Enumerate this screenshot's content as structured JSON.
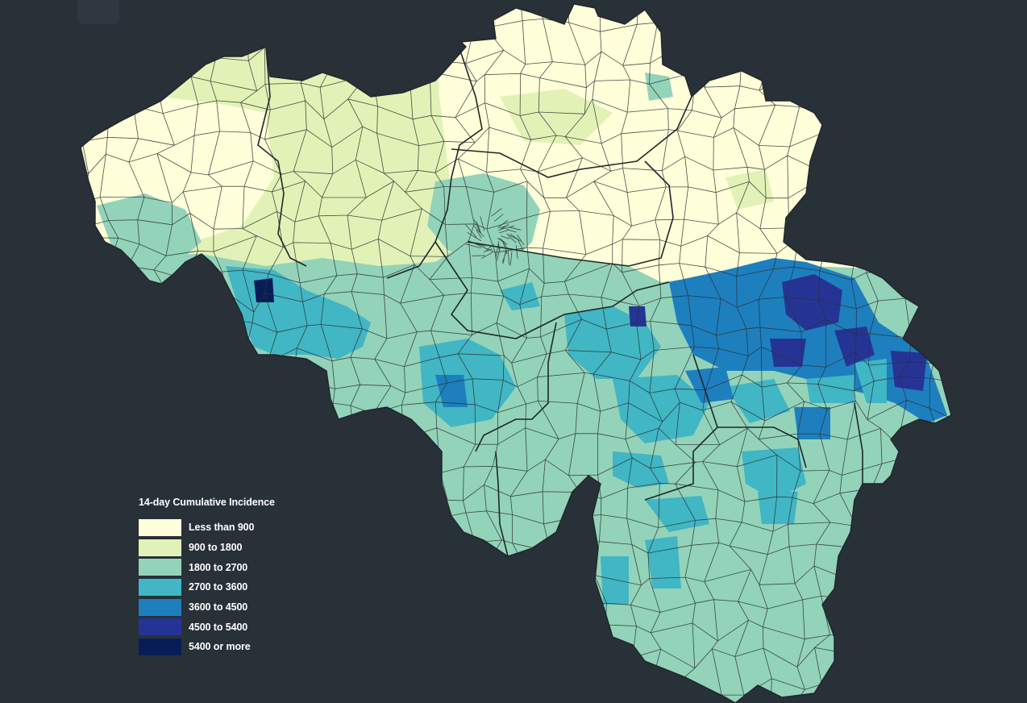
{
  "map": {
    "region": "Belgium municipalities",
    "background_color": "#283038",
    "border_color": "#2a2f33",
    "province_border_color": "#20262b"
  },
  "legend": {
    "title": "14-day Cumulative Incidence",
    "items": [
      {
        "label": "Less than 900",
        "color": "#ffffd9"
      },
      {
        "label": "900 to 1800",
        "color": "#e2f2b6"
      },
      {
        "label": "1800 to 2700",
        "color": "#93d3b9"
      },
      {
        "label": "2700 to 3600",
        "color": "#41b6c4"
      },
      {
        "label": "3600 to 4500",
        "color": "#1d7fbe"
      },
      {
        "label": "4500 to 5400",
        "color": "#253494"
      },
      {
        "label": "5400 or more",
        "color": "#081d58"
      }
    ]
  }
}
